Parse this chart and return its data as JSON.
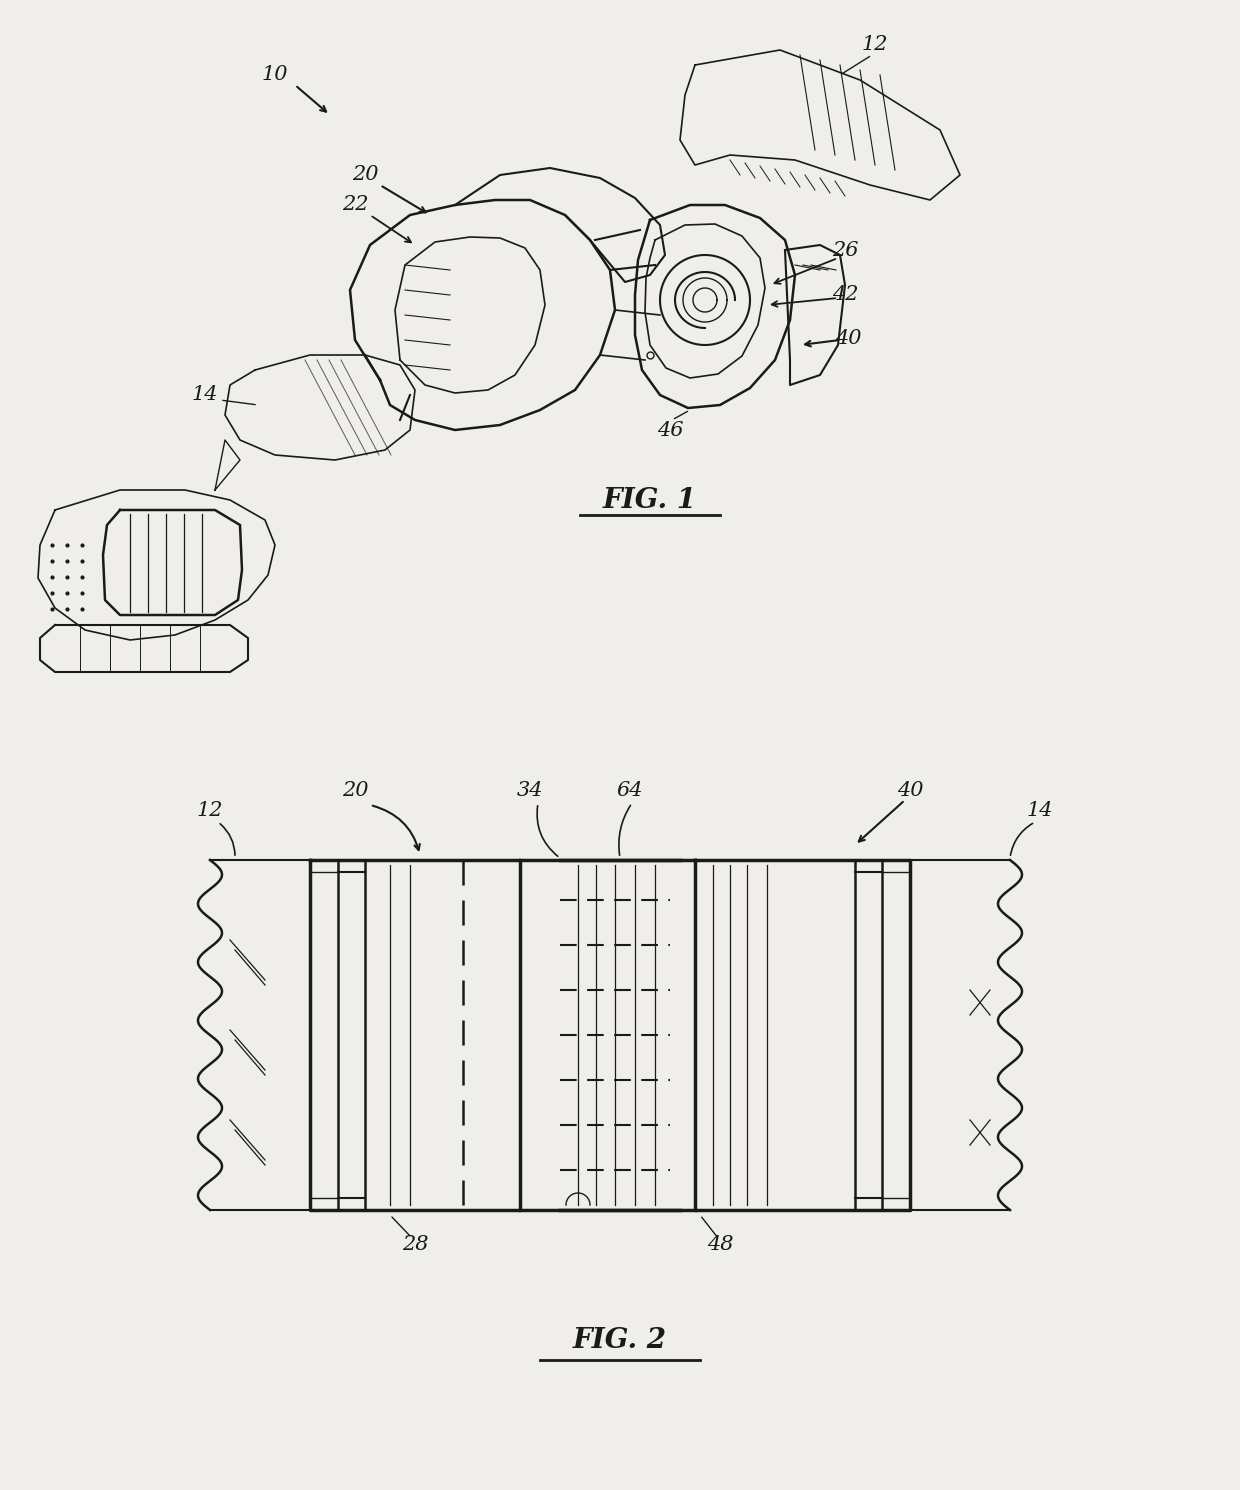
{
  "background_color": "#f0eeeb",
  "fig_width": 12.4,
  "fig_height": 14.9,
  "fig1_label": "FIG. 1",
  "fig2_label": "FIG. 2",
  "line_color": "#1a1a1a",
  "dpi": 100
}
